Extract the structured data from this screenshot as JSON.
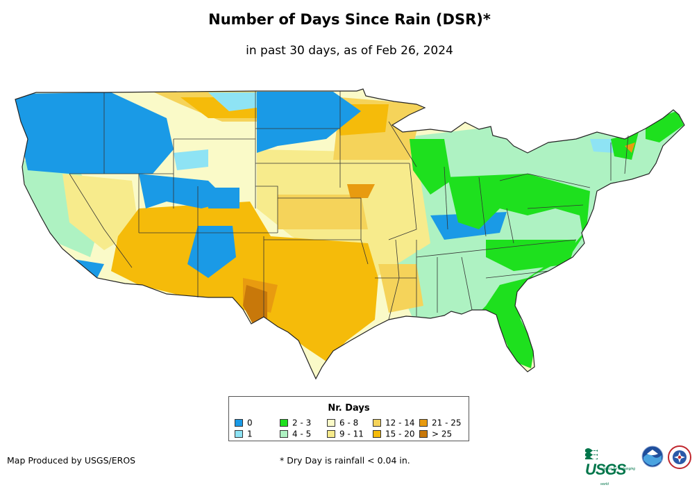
{
  "title": "Number of Days Since Rain (DSR)*",
  "subtitle": "in past 30 days, as of Feb 26, 2024",
  "legend": {
    "title": "Nr. Days",
    "items": [
      {
        "label": "0",
        "color": "#1a9ae6"
      },
      {
        "label": "1",
        "color": "#8ee3f4"
      },
      {
        "label": "2 - 3",
        "color": "#1ee01e"
      },
      {
        "label": "4 - 5",
        "color": "#aef2c2"
      },
      {
        "label": "6 - 8",
        "color": "#fafac8"
      },
      {
        "label": "9 - 11",
        "color": "#f7eb8c"
      },
      {
        "label": "12 - 14",
        "color": "#f5d35a"
      },
      {
        "label": "15 - 20",
        "color": "#f5bb0a"
      },
      {
        "label": "21 - 25",
        "color": "#e89b10"
      },
      {
        "label": "> 25",
        "color": "#c8780a"
      }
    ]
  },
  "credit": "Map Produced by USGS/EROS",
  "footnote": "* Dry Day is rainfall < 0.04 in.",
  "logos": {
    "usgs": {
      "text": "USGS",
      "tagline": "science for a changing world",
      "icon": "usgs-wave-icon"
    },
    "noaa": {
      "icon": "noaa-logo-icon"
    },
    "nws": {
      "icon": "nws-logo-icon"
    }
  },
  "colors": {
    "border": "#333333",
    "background": "#ffffff"
  }
}
